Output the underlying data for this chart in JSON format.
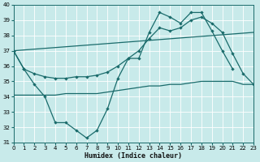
{
  "xlabel": "Humidex (Indice chaleur)",
  "background_color": "#c8eaea",
  "grid_color": "#ffffff",
  "line_color": "#1a6b6b",
  "xlim": [
    0,
    23
  ],
  "ylim": [
    31,
    40
  ],
  "xticks": [
    0,
    1,
    2,
    3,
    4,
    5,
    6,
    7,
    8,
    9,
    10,
    11,
    12,
    13,
    14,
    15,
    16,
    17,
    18,
    19,
    20,
    21,
    22,
    23
  ],
  "yticks": [
    31,
    32,
    33,
    34,
    35,
    36,
    37,
    38,
    39,
    40
  ],
  "jagged": {
    "x": [
      0,
      1,
      2,
      3,
      4,
      5,
      6,
      7,
      8,
      9,
      10,
      11,
      12,
      13,
      14,
      15,
      16,
      17,
      18,
      19,
      20,
      21
    ],
    "y": [
      37.0,
      35.8,
      34.8,
      34.0,
      32.3,
      32.3,
      31.8,
      31.3,
      31.8,
      33.2,
      35.2,
      36.5,
      36.5,
      38.2,
      39.5,
      39.2,
      38.8,
      39.5,
      39.5,
      38.3,
      37.0,
      35.8
    ]
  },
  "flat": {
    "x": [
      0,
      1,
      2,
      3,
      4,
      5,
      6,
      7,
      8,
      9,
      10,
      11,
      12,
      13,
      14,
      15,
      16,
      17,
      18,
      19,
      20,
      21,
      22,
      23
    ],
    "y": [
      34.1,
      34.1,
      34.1,
      34.1,
      34.1,
      34.2,
      34.2,
      34.2,
      34.2,
      34.3,
      34.4,
      34.5,
      34.6,
      34.7,
      34.7,
      34.8,
      34.8,
      34.9,
      35.0,
      35.0,
      35.0,
      35.0,
      34.8,
      34.8
    ]
  },
  "diagonal": {
    "x": [
      0,
      23
    ],
    "y": [
      37.0,
      38.2
    ]
  },
  "upper": {
    "x": [
      0,
      1,
      2,
      3,
      4,
      5,
      6,
      7,
      8,
      9,
      10,
      11,
      12,
      13,
      14,
      15,
      16,
      17,
      18,
      19,
      20,
      21,
      22,
      23
    ],
    "y": [
      37.0,
      35.8,
      35.5,
      35.3,
      35.2,
      35.2,
      35.3,
      35.3,
      35.4,
      35.6,
      36.0,
      36.5,
      37.0,
      37.8,
      38.5,
      38.3,
      38.5,
      39.0,
      39.2,
      38.8,
      38.2,
      36.8,
      35.5,
      34.8
    ]
  }
}
